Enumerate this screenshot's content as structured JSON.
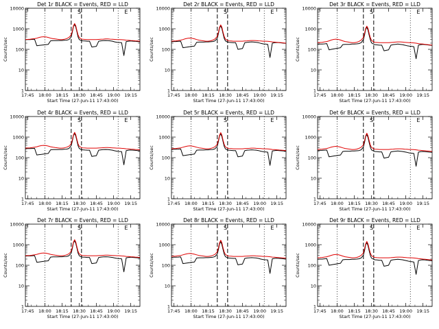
{
  "chart_data": {
    "type": "line",
    "layout": "3x3 grid",
    "xlabel": "Start Time (27-Jun-11 17:43:00)",
    "ylabel": "Counts/sec",
    "y_scale": "log",
    "ylim": [
      1,
      10000
    ],
    "y_ticks": [
      1,
      10,
      100,
      1000,
      10000
    ],
    "y_tick_labels": [
      "1",
      "10",
      "100",
      "1000",
      "10000"
    ],
    "xlim": [
      "17:43",
      "19:23"
    ],
    "x_tick_labels": [
      "17:45",
      "18:00",
      "18:15",
      "18:30",
      "18:45",
      "19:00",
      "19:15"
    ],
    "x_ticks_min": [
      2,
      17,
      32,
      47,
      62,
      77,
      92
    ],
    "grid": false,
    "annotation_markers": [
      {
        "label": "S",
        "x_min": 47
      },
      {
        "label": "E",
        "x_min": 88
      }
    ],
    "vertical_lines": [
      {
        "style": "dotted",
        "x_min": 17
      },
      {
        "style": "dashed",
        "x_min": 40
      },
      {
        "style": "dashed",
        "x_min": 49
      },
      {
        "style": "dotted",
        "x_min": 81
      }
    ],
    "series_colors": {
      "events": "#000000",
      "lld": "#e00000"
    },
    "x_min": [
      0,
      2,
      4,
      6,
      8,
      10,
      12,
      14,
      16,
      18,
      20,
      22,
      24,
      26,
      28,
      30,
      32,
      34,
      36,
      38,
      40,
      41,
      42,
      43,
      44,
      45,
      46,
      47,
      48,
      49,
      50,
      52,
      54,
      56,
      58,
      60,
      62,
      64,
      66,
      68,
      70,
      72,
      74,
      76,
      78,
      80,
      82,
      84,
      86,
      88,
      90,
      92,
      94,
      96,
      98,
      100
    ],
    "panels": [
      {
        "title": "Det 1r BLACK = Events, RED = LLD",
        "events": [
          295,
          300,
          300,
          305,
          310,
          150,
          155,
          160,
          165,
          170,
          175,
          260,
          265,
          265,
          265,
          270,
          270,
          275,
          280,
          300,
          400,
          700,
          1300,
          1600,
          1200,
          700,
          400,
          300,
          280,
          270,
          260,
          255,
          250,
          250,
          130,
          135,
          140,
          250,
          260,
          265,
          270,
          265,
          260,
          250,
          230,
          220,
          215,
          210,
          50,
          240,
          250,
          255,
          250,
          245,
          240,
          235
        ],
        "lld": [
          300,
          305,
          310,
          320,
          330,
          350,
          380,
          400,
          410,
          400,
          380,
          350,
          330,
          320,
          310,
          300,
          300,
          310,
          330,
          380,
          500,
          800,
          1400,
          1800,
          1400,
          800,
          500,
          380,
          340,
          320,
          310,
          305,
          300,
          300,
          300,
          300,
          300,
          305,
          310,
          315,
          320,
          320,
          315,
          310,
          305,
          300,
          300,
          295,
          290,
          280,
          275,
          270,
          265,
          260,
          255,
          250
        ]
      },
      {
        "title": "Det 2r BLACK = Events, RED = LLD",
        "events": [
          235,
          240,
          240,
          245,
          250,
          120,
          125,
          130,
          135,
          140,
          145,
          220,
          225,
          225,
          225,
          230,
          230,
          235,
          240,
          260,
          350,
          600,
          1100,
          1400,
          1000,
          600,
          350,
          260,
          240,
          230,
          220,
          215,
          210,
          210,
          100,
          105,
          110,
          210,
          220,
          225,
          230,
          225,
          220,
          210,
          195,
          185,
          180,
          175,
          40,
          200,
          210,
          215,
          210,
          205,
          200,
          195
        ],
        "lld": [
          250,
          255,
          260,
          270,
          280,
          300,
          325,
          345,
          355,
          345,
          325,
          300,
          280,
          270,
          260,
          250,
          250,
          260,
          280,
          320,
          430,
          700,
          1200,
          1550,
          1200,
          700,
          430,
          320,
          290,
          270,
          260,
          255,
          250,
          250,
          250,
          250,
          250,
          255,
          260,
          265,
          270,
          270,
          265,
          260,
          255,
          250,
          250,
          245,
          240,
          230,
          225,
          220,
          215,
          210,
          205,
          200
        ]
      },
      {
        "title": "Det 3r BLACK = Events, RED = LLD",
        "events": [
          175,
          180,
          180,
          185,
          190,
          95,
          100,
          105,
          110,
          115,
          120,
          170,
          175,
          175,
          175,
          180,
          180,
          185,
          190,
          210,
          300,
          500,
          950,
          1200,
          850,
          500,
          300,
          210,
          190,
          180,
          170,
          165,
          160,
          160,
          85,
          90,
          95,
          160,
          170,
          175,
          180,
          175,
          170,
          160,
          150,
          145,
          140,
          135,
          35,
          160,
          170,
          175,
          170,
          165,
          160,
          155
        ],
        "lld": [
          210,
          215,
          220,
          230,
          240,
          260,
          285,
          305,
          315,
          305,
          285,
          260,
          240,
          230,
          220,
          210,
          210,
          220,
          240,
          280,
          380,
          620,
          1050,
          1350,
          1050,
          620,
          380,
          280,
          250,
          230,
          220,
          215,
          210,
          210,
          210,
          210,
          210,
          215,
          220,
          225,
          230,
          230,
          225,
          220,
          215,
          210,
          210,
          205,
          200,
          190,
          185,
          180,
          175,
          170,
          165,
          160
        ]
      },
      {
        "title": "Det 4r BLACK = Events, RED = LLD",
        "events": [
          270,
          275,
          275,
          280,
          285,
          135,
          140,
          145,
          150,
          155,
          160,
          240,
          245,
          245,
          245,
          250,
          250,
          255,
          260,
          280,
          380,
          650,
          1200,
          1500,
          1100,
          650,
          380,
          280,
          260,
          250,
          240,
          235,
          230,
          230,
          115,
          120,
          125,
          230,
          240,
          245,
          250,
          245,
          240,
          230,
          215,
          205,
          200,
          195,
          45,
          220,
          230,
          235,
          230,
          225,
          220,
          215
        ],
        "lld": [
          290,
          295,
          300,
          310,
          320,
          340,
          365,
          385,
          395,
          385,
          365,
          340,
          320,
          310,
          300,
          290,
          290,
          300,
          320,
          360,
          470,
          760,
          1300,
          1700,
          1300,
          760,
          470,
          360,
          330,
          310,
          300,
          295,
          290,
          290,
          290,
          290,
          290,
          295,
          300,
          305,
          310,
          310,
          305,
          300,
          295,
          290,
          290,
          285,
          280,
          270,
          265,
          260,
          255,
          250,
          245,
          240
        ]
      },
      {
        "title": "Det 5r BLACK = Events, RED = LLD",
        "events": [
          250,
          255,
          255,
          260,
          265,
          125,
          130,
          135,
          140,
          145,
          150,
          230,
          235,
          235,
          235,
          240,
          240,
          245,
          250,
          270,
          360,
          620,
          1150,
          1450,
          1050,
          620,
          360,
          270,
          250,
          240,
          230,
          225,
          220,
          220,
          110,
          115,
          120,
          220,
          230,
          235,
          240,
          235,
          230,
          220,
          205,
          195,
          190,
          185,
          42,
          210,
          220,
          225,
          220,
          215,
          210,
          205
        ],
        "lld": [
          270,
          275,
          280,
          290,
          300,
          320,
          345,
          365,
          375,
          365,
          345,
          320,
          300,
          290,
          280,
          270,
          270,
          280,
          300,
          340,
          450,
          730,
          1250,
          1650,
          1250,
          730,
          450,
          340,
          310,
          290,
          280,
          275,
          270,
          270,
          270,
          270,
          270,
          275,
          280,
          285,
          290,
          290,
          285,
          280,
          275,
          270,
          270,
          265,
          260,
          250,
          245,
          240,
          235,
          230,
          225,
          220
        ]
      },
      {
        "title": "Det 6r BLACK = Events, RED = LLD",
        "events": [
          220,
          225,
          225,
          230,
          235,
          110,
          115,
          120,
          125,
          130,
          135,
          200,
          205,
          205,
          205,
          210,
          210,
          215,
          220,
          240,
          330,
          560,
          1050,
          1350,
          950,
          560,
          330,
          240,
          220,
          210,
          200,
          195,
          190,
          190,
          95,
          100,
          105,
          190,
          200,
          205,
          210,
          205,
          200,
          190,
          180,
          170,
          165,
          160,
          38,
          185,
          195,
          200,
          195,
          190,
          185,
          180
        ],
        "lld": [
          250,
          255,
          260,
          270,
          280,
          300,
          325,
          345,
          355,
          345,
          325,
          300,
          280,
          270,
          260,
          250,
          250,
          260,
          280,
          320,
          420,
          690,
          1150,
          1550,
          1150,
          690,
          420,
          320,
          290,
          270,
          260,
          255,
          250,
          250,
          250,
          250,
          250,
          255,
          260,
          265,
          270,
          270,
          265,
          260,
          255,
          250,
          250,
          245,
          240,
          230,
          225,
          220,
          215,
          210,
          205,
          200
        ]
      },
      {
        "title": "Det 7r BLACK = Events, RED = LLD",
        "events": [
          280,
          285,
          285,
          290,
          295,
          140,
          145,
          150,
          155,
          160,
          165,
          250,
          255,
          255,
          255,
          260,
          260,
          265,
          270,
          290,
          390,
          670,
          1250,
          1550,
          1150,
          670,
          390,
          290,
          270,
          260,
          250,
          245,
          240,
          240,
          120,
          125,
          130,
          240,
          250,
          255,
          260,
          255,
          250,
          240,
          225,
          215,
          210,
          205,
          48,
          230,
          240,
          245,
          240,
          235,
          230,
          225
        ],
        "lld": [
          290,
          295,
          300,
          310,
          320,
          340,
          365,
          385,
          395,
          385,
          365,
          340,
          320,
          310,
          300,
          290,
          290,
          300,
          320,
          360,
          480,
          780,
          1350,
          1750,
          1350,
          780,
          480,
          360,
          330,
          310,
          300,
          295,
          290,
          290,
          290,
          290,
          290,
          295,
          300,
          305,
          310,
          310,
          305,
          300,
          295,
          290,
          290,
          285,
          280,
          270,
          265,
          260,
          255,
          250,
          245,
          240
        ]
      },
      {
        "title": "Det 8r BLACK = Events, RED = LLD",
        "events": [
          240,
          245,
          245,
          250,
          255,
          120,
          125,
          130,
          135,
          140,
          145,
          225,
          230,
          230,
          230,
          235,
          235,
          240,
          245,
          265,
          355,
          600,
          1100,
          1400,
          1000,
          600,
          355,
          265,
          245,
          235,
          225,
          220,
          215,
          215,
          105,
          110,
          115,
          215,
          225,
          230,
          235,
          230,
          225,
          215,
          200,
          190,
          185,
          180,
          40,
          205,
          215,
          220,
          215,
          210,
          205,
          200
        ],
        "lld": [
          270,
          275,
          280,
          290,
          300,
          320,
          345,
          365,
          375,
          365,
          345,
          320,
          300,
          290,
          280,
          270,
          270,
          280,
          300,
          340,
          450,
          730,
          1250,
          1650,
          1250,
          730,
          450,
          340,
          310,
          290,
          280,
          275,
          270,
          270,
          270,
          270,
          270,
          275,
          280,
          285,
          290,
          290,
          285,
          280,
          275,
          270,
          270,
          265,
          260,
          250,
          245,
          240,
          235,
          230,
          225,
          220
        ]
      },
      {
        "title": "Det 9r BLACK = Events, RED = LLD",
        "events": [
          195,
          200,
          200,
          205,
          210,
          100,
          105,
          110,
          115,
          120,
          125,
          185,
          190,
          190,
          190,
          195,
          195,
          200,
          205,
          225,
          310,
          520,
          1000,
          1250,
          900,
          520,
          310,
          225,
          205,
          195,
          185,
          180,
          175,
          175,
          90,
          95,
          100,
          175,
          185,
          190,
          195,
          190,
          185,
          175,
          165,
          155,
          150,
          145,
          36,
          170,
          180,
          185,
          180,
          175,
          170,
          165
        ],
        "lld": [
          230,
          235,
          240,
          250,
          260,
          280,
          305,
          325,
          335,
          325,
          305,
          280,
          260,
          250,
          240,
          230,
          230,
          240,
          260,
          300,
          400,
          650,
          1100,
          1450,
          1100,
          650,
          400,
          300,
          270,
          250,
          240,
          235,
          230,
          230,
          230,
          230,
          230,
          235,
          240,
          245,
          250,
          250,
          245,
          240,
          235,
          230,
          230,
          225,
          220,
          210,
          205,
          200,
          195,
          190,
          185,
          180
        ]
      }
    ]
  }
}
